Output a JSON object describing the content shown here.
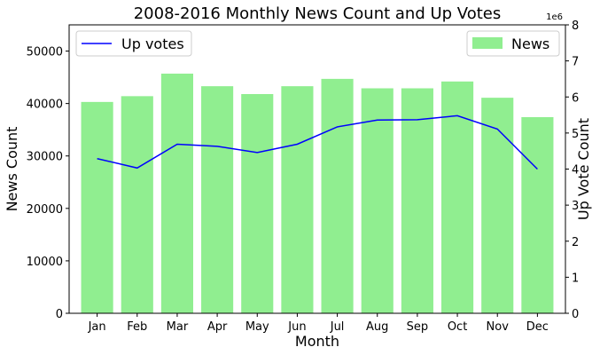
{
  "chart_data": {
    "type": "bar",
    "title": "2008-2016 Monthly News Count and Up Votes",
    "xlabel": "Month",
    "ylabel": "News Count",
    "y2label": "Up Vote Count",
    "y2_offset_label": "1e6",
    "categories": [
      "Jan",
      "Feb",
      "Mar",
      "Apr",
      "May",
      "Jun",
      "Jul",
      "Aug",
      "Sep",
      "Oct",
      "Nov",
      "Dec"
    ],
    "ylim": [
      0,
      55000
    ],
    "yticks": [
      0,
      10000,
      20000,
      30000,
      40000,
      50000
    ],
    "y2lim": [
      0,
      8
    ],
    "y2ticks": [
      0,
      1,
      2,
      3,
      4,
      5,
      6,
      7,
      8
    ],
    "series": [
      {
        "name": "News",
        "type": "bar",
        "axis": "left",
        "color": "#90ee90",
        "values": [
          40300,
          41400,
          45700,
          43300,
          41800,
          43300,
          44700,
          42900,
          42900,
          44200,
          41100,
          37400
        ]
      },
      {
        "name": "Up votes",
        "type": "line",
        "axis": "right",
        "color": "#0000ff",
        "values": [
          4.29,
          4.03,
          4.69,
          4.63,
          4.46,
          4.69,
          5.17,
          5.36,
          5.37,
          5.48,
          5.11,
          4.0
        ]
      }
    ],
    "legend": [
      {
        "label": "Up votes",
        "position": "top-left"
      },
      {
        "label": "News",
        "position": "top-right"
      }
    ]
  }
}
